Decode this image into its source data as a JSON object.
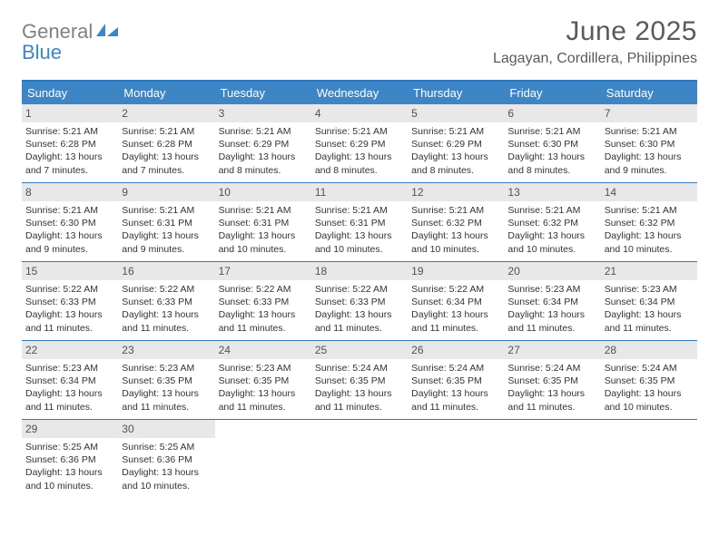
{
  "logo": {
    "text_gray": "General",
    "text_blue": "Blue",
    "icon_color": "#3e85c6"
  },
  "header": {
    "month_title": "June 2025",
    "location": "Lagayan, Cordillera, Philippines"
  },
  "colors": {
    "header_bar": "#3e85c6",
    "header_border": "#2f79bf",
    "daynum_bg": "#e8e8e8",
    "text": "#333333",
    "title_text": "#5a5a5a"
  },
  "weekdays": [
    "Sunday",
    "Monday",
    "Tuesday",
    "Wednesday",
    "Thursday",
    "Friday",
    "Saturday"
  ],
  "weeks": [
    [
      {
        "n": "1",
        "sr": "Sunrise: 5:21 AM",
        "ss": "Sunset: 6:28 PM",
        "d1": "Daylight: 13 hours",
        "d2": "and 7 minutes."
      },
      {
        "n": "2",
        "sr": "Sunrise: 5:21 AM",
        "ss": "Sunset: 6:28 PM",
        "d1": "Daylight: 13 hours",
        "d2": "and 7 minutes."
      },
      {
        "n": "3",
        "sr": "Sunrise: 5:21 AM",
        "ss": "Sunset: 6:29 PM",
        "d1": "Daylight: 13 hours",
        "d2": "and 8 minutes."
      },
      {
        "n": "4",
        "sr": "Sunrise: 5:21 AM",
        "ss": "Sunset: 6:29 PM",
        "d1": "Daylight: 13 hours",
        "d2": "and 8 minutes."
      },
      {
        "n": "5",
        "sr": "Sunrise: 5:21 AM",
        "ss": "Sunset: 6:29 PM",
        "d1": "Daylight: 13 hours",
        "d2": "and 8 minutes."
      },
      {
        "n": "6",
        "sr": "Sunrise: 5:21 AM",
        "ss": "Sunset: 6:30 PM",
        "d1": "Daylight: 13 hours",
        "d2": "and 8 minutes."
      },
      {
        "n": "7",
        "sr": "Sunrise: 5:21 AM",
        "ss": "Sunset: 6:30 PM",
        "d1": "Daylight: 13 hours",
        "d2": "and 9 minutes."
      }
    ],
    [
      {
        "n": "8",
        "sr": "Sunrise: 5:21 AM",
        "ss": "Sunset: 6:30 PM",
        "d1": "Daylight: 13 hours",
        "d2": "and 9 minutes."
      },
      {
        "n": "9",
        "sr": "Sunrise: 5:21 AM",
        "ss": "Sunset: 6:31 PM",
        "d1": "Daylight: 13 hours",
        "d2": "and 9 minutes."
      },
      {
        "n": "10",
        "sr": "Sunrise: 5:21 AM",
        "ss": "Sunset: 6:31 PM",
        "d1": "Daylight: 13 hours",
        "d2": "and 10 minutes."
      },
      {
        "n": "11",
        "sr": "Sunrise: 5:21 AM",
        "ss": "Sunset: 6:31 PM",
        "d1": "Daylight: 13 hours",
        "d2": "and 10 minutes."
      },
      {
        "n": "12",
        "sr": "Sunrise: 5:21 AM",
        "ss": "Sunset: 6:32 PM",
        "d1": "Daylight: 13 hours",
        "d2": "and 10 minutes."
      },
      {
        "n": "13",
        "sr": "Sunrise: 5:21 AM",
        "ss": "Sunset: 6:32 PM",
        "d1": "Daylight: 13 hours",
        "d2": "and 10 minutes."
      },
      {
        "n": "14",
        "sr": "Sunrise: 5:21 AM",
        "ss": "Sunset: 6:32 PM",
        "d1": "Daylight: 13 hours",
        "d2": "and 10 minutes."
      }
    ],
    [
      {
        "n": "15",
        "sr": "Sunrise: 5:22 AM",
        "ss": "Sunset: 6:33 PM",
        "d1": "Daylight: 13 hours",
        "d2": "and 11 minutes."
      },
      {
        "n": "16",
        "sr": "Sunrise: 5:22 AM",
        "ss": "Sunset: 6:33 PM",
        "d1": "Daylight: 13 hours",
        "d2": "and 11 minutes."
      },
      {
        "n": "17",
        "sr": "Sunrise: 5:22 AM",
        "ss": "Sunset: 6:33 PM",
        "d1": "Daylight: 13 hours",
        "d2": "and 11 minutes."
      },
      {
        "n": "18",
        "sr": "Sunrise: 5:22 AM",
        "ss": "Sunset: 6:33 PM",
        "d1": "Daylight: 13 hours",
        "d2": "and 11 minutes."
      },
      {
        "n": "19",
        "sr": "Sunrise: 5:22 AM",
        "ss": "Sunset: 6:34 PM",
        "d1": "Daylight: 13 hours",
        "d2": "and 11 minutes."
      },
      {
        "n": "20",
        "sr": "Sunrise: 5:23 AM",
        "ss": "Sunset: 6:34 PM",
        "d1": "Daylight: 13 hours",
        "d2": "and 11 minutes."
      },
      {
        "n": "21",
        "sr": "Sunrise: 5:23 AM",
        "ss": "Sunset: 6:34 PM",
        "d1": "Daylight: 13 hours",
        "d2": "and 11 minutes."
      }
    ],
    [
      {
        "n": "22",
        "sr": "Sunrise: 5:23 AM",
        "ss": "Sunset: 6:34 PM",
        "d1": "Daylight: 13 hours",
        "d2": "and 11 minutes."
      },
      {
        "n": "23",
        "sr": "Sunrise: 5:23 AM",
        "ss": "Sunset: 6:35 PM",
        "d1": "Daylight: 13 hours",
        "d2": "and 11 minutes."
      },
      {
        "n": "24",
        "sr": "Sunrise: 5:23 AM",
        "ss": "Sunset: 6:35 PM",
        "d1": "Daylight: 13 hours",
        "d2": "and 11 minutes."
      },
      {
        "n": "25",
        "sr": "Sunrise: 5:24 AM",
        "ss": "Sunset: 6:35 PM",
        "d1": "Daylight: 13 hours",
        "d2": "and 11 minutes."
      },
      {
        "n": "26",
        "sr": "Sunrise: 5:24 AM",
        "ss": "Sunset: 6:35 PM",
        "d1": "Daylight: 13 hours",
        "d2": "and 11 minutes."
      },
      {
        "n": "27",
        "sr": "Sunrise: 5:24 AM",
        "ss": "Sunset: 6:35 PM",
        "d1": "Daylight: 13 hours",
        "d2": "and 11 minutes."
      },
      {
        "n": "28",
        "sr": "Sunrise: 5:24 AM",
        "ss": "Sunset: 6:35 PM",
        "d1": "Daylight: 13 hours",
        "d2": "and 10 minutes."
      }
    ],
    [
      {
        "n": "29",
        "sr": "Sunrise: 5:25 AM",
        "ss": "Sunset: 6:36 PM",
        "d1": "Daylight: 13 hours",
        "d2": "and 10 minutes."
      },
      {
        "n": "30",
        "sr": "Sunrise: 5:25 AM",
        "ss": "Sunset: 6:36 PM",
        "d1": "Daylight: 13 hours",
        "d2": "and 10 minutes."
      },
      null,
      null,
      null,
      null,
      null
    ]
  ]
}
